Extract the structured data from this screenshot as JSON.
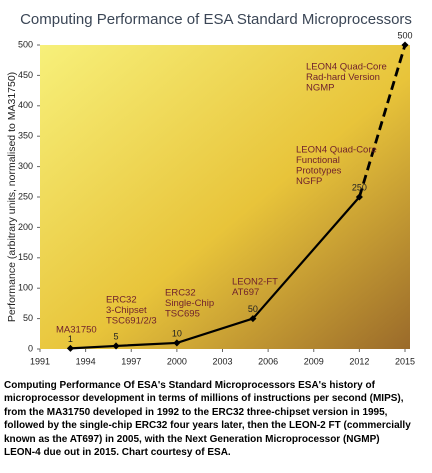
{
  "chart_data": {
    "type": "line",
    "title": "Computing Performance of ESA Standard Microprocessors",
    "y_label": "Performance (arbitrary units, normalised to MA31750)",
    "x": [
      1993,
      1996,
      2000,
      2005,
      2012,
      2015
    ],
    "series": [
      {
        "name": "Performance",
        "color": "#000000",
        "values": [
          1,
          5,
          10,
          50,
          250,
          500
        ]
      }
    ],
    "dashed_last_segment": true,
    "xlim": [
      1991,
      2015
    ],
    "xticks": [
      1991,
      1994,
      1997,
      2000,
      2003,
      2006,
      2009,
      2012,
      2015
    ],
    "ylim": [
      0,
      500
    ],
    "yticks": [
      0,
      50,
      100,
      150,
      200,
      250,
      300,
      350,
      400,
      450,
      500
    ],
    "annotations": [
      [
        "MA31750"
      ],
      [
        "ERC32",
        "3-Chipset",
        "TSC691/2/3"
      ],
      [
        "ERC32",
        "Single-Chip",
        "TSC695"
      ],
      [
        "LEON2-FT",
        "AT697"
      ],
      [
        "LEON4 Quad-Core",
        "Functional",
        "Prototypes",
        "NGFP"
      ],
      [
        "LEON4 Quad-Core",
        "Rad-hard Version",
        "NGMP"
      ]
    ]
  },
  "caption": [
    "Computing Performance Of ESA's Standard Microprocessors ESA's history of",
    "microprocessor development in terms of millions of instructions per second (MIPS),",
    "from the MA31750 developed in 1992 to the ERC32 three-chipset version in 1995,",
    "followed by the single-chip ERC32 four years later, then the LEON-2 FT (commercially",
    "known as the AT697) in 2005, with the Next Generation Microprocessor (NGMP)",
    "LEON-4 due out in 2015.  Chart courtesy of ESA."
  ]
}
